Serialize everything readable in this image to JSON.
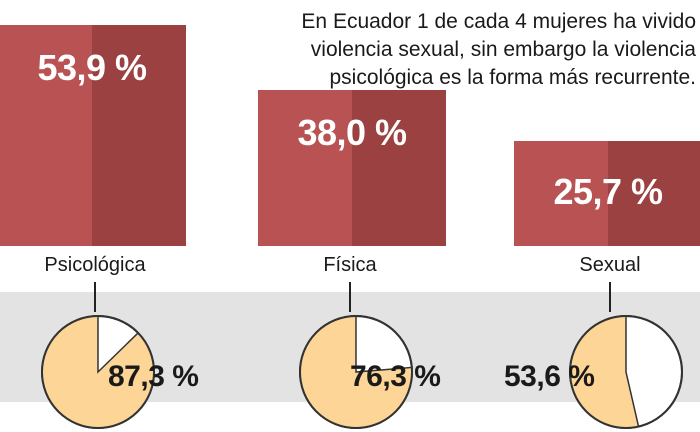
{
  "headline": {
    "lines": [
      "En Ecuador 1 de cada 4 mujeres ha vivido",
      "violencia sexual, sin embargo la violencia",
      "psicológica es la forma más recurrente."
    ]
  },
  "chart_data": [
    {
      "type": "bar",
      "categories": [
        "Psicológica",
        "Física",
        "Sexual"
      ],
      "values": [
        53.9,
        38.0,
        25.7
      ],
      "value_labels": [
        "53,9 %",
        "38,0 %",
        "25,7 %"
      ],
      "unit": "%",
      "title": "",
      "xlabel": "",
      "ylabel": ""
    },
    {
      "type": "pie",
      "categories": [
        "Psicológica",
        "Física",
        "Sexual"
      ],
      "values": [
        87.3,
        76.3,
        53.6
      ],
      "value_labels": [
        "87,3 %",
        "76,3 %",
        "53,6 %"
      ],
      "unit": "%"
    }
  ],
  "colors": {
    "bar_light": "#b95252",
    "bar_dark": "#9c4141",
    "pie_fill": "#fcd597",
    "pie_rest": "#ffffff",
    "pie_stroke": "#333333",
    "band": "#e3e3e3"
  }
}
